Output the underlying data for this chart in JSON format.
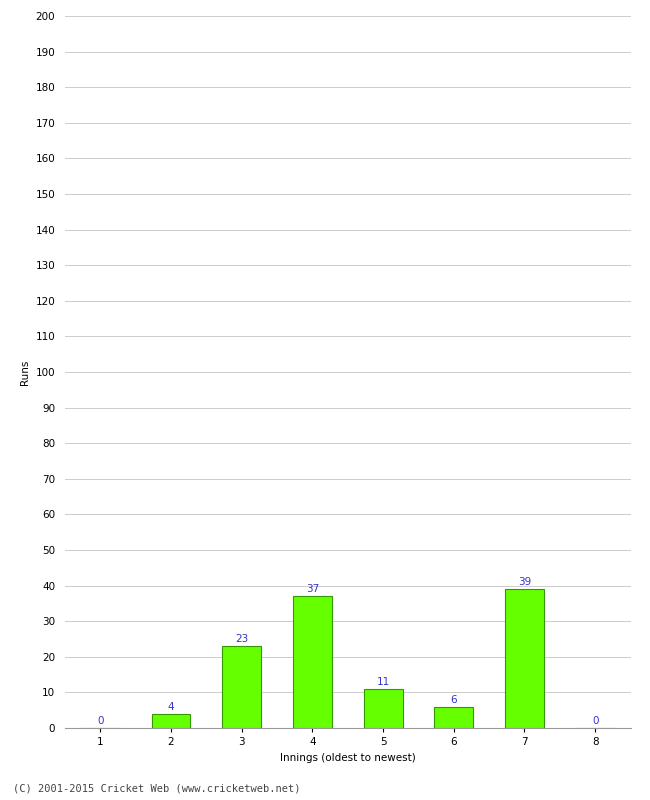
{
  "categories": [
    1,
    2,
    3,
    4,
    5,
    6,
    7,
    8
  ],
  "values": [
    0,
    4,
    23,
    37,
    11,
    6,
    39,
    0
  ],
  "bar_color": "#66ff00",
  "bar_edge_color": "#339900",
  "xlabel": "Innings (oldest to newest)",
  "ylabel": "Runs",
  "ylim": [
    0,
    200
  ],
  "yticks": [
    0,
    10,
    20,
    30,
    40,
    50,
    60,
    70,
    80,
    90,
    100,
    110,
    120,
    130,
    140,
    150,
    160,
    170,
    180,
    190,
    200
  ],
  "label_color": "#3333cc",
  "label_fontsize": 7.5,
  "axis_label_fontsize": 7.5,
  "tick_fontsize": 7.5,
  "footer": "(C) 2001-2015 Cricket Web (www.cricketweb.net)",
  "footer_fontsize": 7.5,
  "background_color": "#ffffff",
  "grid_color": "#cccccc",
  "bar_width": 0.55
}
